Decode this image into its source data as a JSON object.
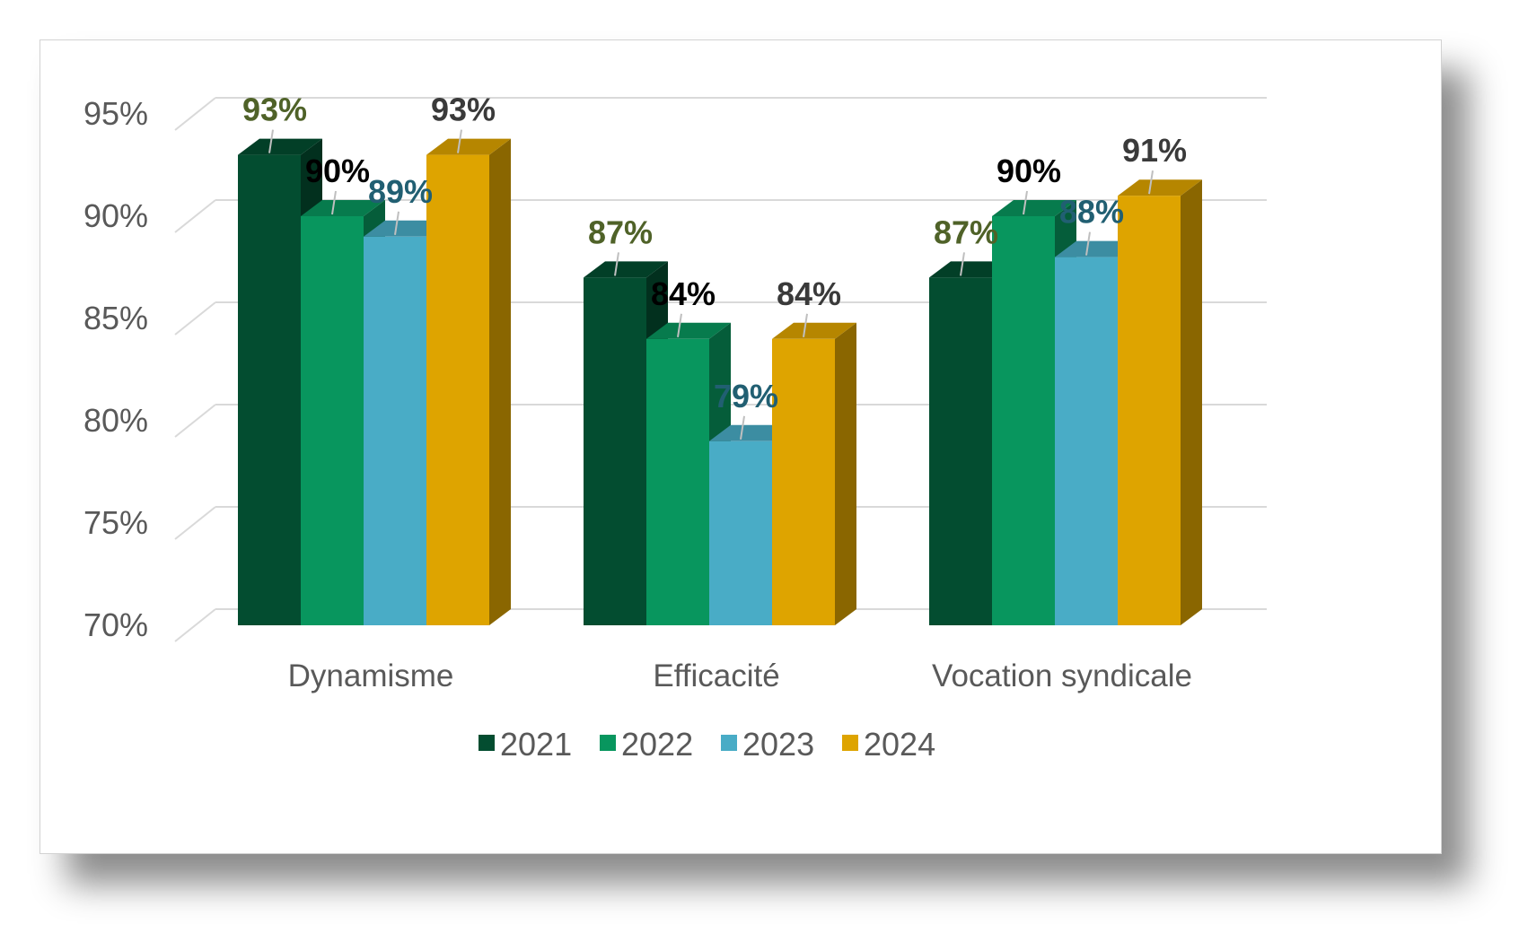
{
  "chart_data": {
    "type": "bar",
    "title": "",
    "xlabel": "",
    "ylabel": "",
    "categories": [
      "Dynamisme",
      "Efficacité",
      "Vocation syndicale"
    ],
    "series": [
      {
        "name": "2021",
        "values": [
          93,
          87,
          87
        ],
        "labels": [
          "93%",
          "87%",
          "87%"
        ],
        "color": "#034d30",
        "label_color": "#4f6228"
      },
      {
        "name": "2022",
        "values": [
          90,
          84,
          90
        ],
        "labels": [
          "90%",
          "84%",
          "90%"
        ],
        "color": "#08965e",
        "label_color": "#000000"
      },
      {
        "name": "2023",
        "values": [
          89,
          79,
          88
        ],
        "labels": [
          "89%",
          "79%",
          "88%"
        ],
        "color": "#49acc6",
        "label_color": "#215f72"
      },
      {
        "name": "2024",
        "values": [
          93,
          84,
          91
        ],
        "labels": [
          "93%",
          "84%",
          "91%"
        ],
        "color": "#dea400",
        "label_color": "#3a3a3a"
      }
    ],
    "ylim": [
      70,
      95
    ],
    "yticks": [
      "70%",
      "75%",
      "80%",
      "85%",
      "90%",
      "95%"
    ],
    "ytick_values": [
      70,
      75,
      80,
      85,
      90,
      95
    ],
    "grid": true,
    "style": "3d-clustered-column",
    "legend_position": "bottom"
  }
}
